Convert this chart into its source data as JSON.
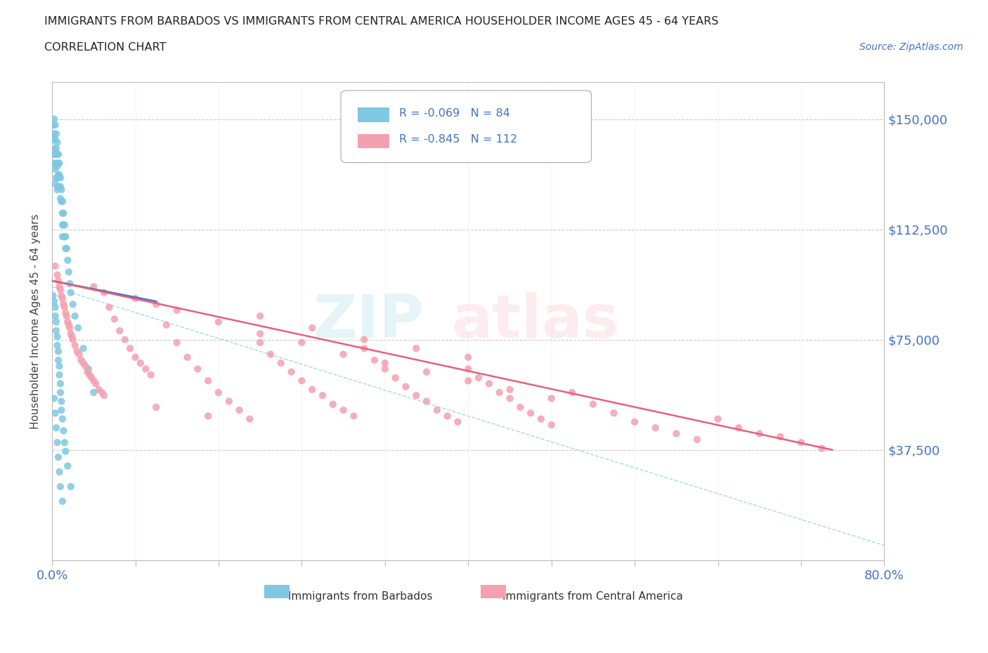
{
  "title_line1": "IMMIGRANTS FROM BARBADOS VS IMMIGRANTS FROM CENTRAL AMERICA HOUSEHOLDER INCOME AGES 45 - 64 YEARS",
  "title_line2": "CORRELATION CHART",
  "source_text": "Source: ZipAtlas.com",
  "ylabel": "Householder Income Ages 45 - 64 years",
  "xlim": [
    0.0,
    0.8
  ],
  "ylim": [
    0,
    162500
  ],
  "yticks": [
    0,
    37500,
    75000,
    112500,
    150000
  ],
  "ytick_labels": [
    "",
    "$37,500",
    "$75,000",
    "$112,500",
    "$150,000"
  ],
  "legend_r1": "R = -0.069",
  "legend_n1": "N = 84",
  "legend_r2": "R = -0.845",
  "legend_n2": "N = 112",
  "color_barbados": "#7EC8E3",
  "color_central": "#F4A0B0",
  "color_blue": "#4472C4",
  "color_pink": "#E8607A",
  "color_text_blue": "#4472C4",
  "barbados_x": [
    0.001,
    0.001,
    0.001,
    0.002,
    0.002,
    0.002,
    0.002,
    0.003,
    0.003,
    0.003,
    0.003,
    0.003,
    0.004,
    0.004,
    0.004,
    0.004,
    0.005,
    0.005,
    0.005,
    0.005,
    0.005,
    0.006,
    0.006,
    0.006,
    0.006,
    0.007,
    0.007,
    0.007,
    0.008,
    0.008,
    0.008,
    0.009,
    0.009,
    0.01,
    0.01,
    0.01,
    0.01,
    0.011,
    0.011,
    0.012,
    0.012,
    0.013,
    0.013,
    0.014,
    0.015,
    0.016,
    0.017,
    0.018,
    0.02,
    0.022,
    0.025,
    0.03,
    0.035,
    0.04,
    0.001,
    0.002,
    0.003,
    0.003,
    0.004,
    0.004,
    0.005,
    0.005,
    0.006,
    0.006,
    0.007,
    0.007,
    0.008,
    0.008,
    0.009,
    0.009,
    0.01,
    0.011,
    0.012,
    0.013,
    0.015,
    0.018,
    0.002,
    0.003,
    0.004,
    0.005,
    0.006,
    0.007,
    0.008,
    0.01
  ],
  "barbados_y": [
    148000,
    143000,
    138000,
    150000,
    145000,
    140000,
    135000,
    148000,
    143000,
    138000,
    133000,
    128000,
    145000,
    140000,
    135000,
    130000,
    142000,
    138000,
    134000,
    130000,
    126000,
    138000,
    135000,
    131000,
    127000,
    135000,
    131000,
    127000,
    130000,
    127000,
    123000,
    126000,
    122000,
    122000,
    118000,
    114000,
    110000,
    118000,
    114000,
    114000,
    110000,
    110000,
    106000,
    106000,
    102000,
    98000,
    94000,
    91000,
    87000,
    83000,
    79000,
    72000,
    65000,
    57000,
    90000,
    88000,
    86000,
    83000,
    81000,
    78000,
    76000,
    73000,
    71000,
    68000,
    66000,
    63000,
    60000,
    57000,
    54000,
    51000,
    48000,
    44000,
    40000,
    37000,
    32000,
    25000,
    55000,
    50000,
    45000,
    40000,
    35000,
    30000,
    25000,
    20000
  ],
  "central_x": [
    0.003,
    0.005,
    0.006,
    0.007,
    0.008,
    0.009,
    0.01,
    0.011,
    0.012,
    0.013,
    0.014,
    0.015,
    0.016,
    0.017,
    0.018,
    0.019,
    0.02,
    0.022,
    0.024,
    0.026,
    0.028,
    0.03,
    0.032,
    0.034,
    0.036,
    0.038,
    0.04,
    0.042,
    0.045,
    0.048,
    0.05,
    0.055,
    0.06,
    0.065,
    0.07,
    0.075,
    0.08,
    0.085,
    0.09,
    0.095,
    0.1,
    0.11,
    0.12,
    0.13,
    0.14,
    0.15,
    0.16,
    0.17,
    0.18,
    0.19,
    0.2,
    0.21,
    0.22,
    0.23,
    0.24,
    0.25,
    0.26,
    0.27,
    0.28,
    0.29,
    0.3,
    0.31,
    0.32,
    0.33,
    0.34,
    0.35,
    0.36,
    0.37,
    0.38,
    0.39,
    0.4,
    0.41,
    0.42,
    0.43,
    0.44,
    0.45,
    0.46,
    0.47,
    0.48,
    0.5,
    0.52,
    0.54,
    0.56,
    0.58,
    0.6,
    0.62,
    0.64,
    0.66,
    0.68,
    0.7,
    0.72,
    0.74,
    0.05,
    0.1,
    0.15,
    0.2,
    0.25,
    0.3,
    0.35,
    0.4,
    0.04,
    0.08,
    0.12,
    0.16,
    0.2,
    0.24,
    0.28,
    0.32,
    0.36,
    0.4,
    0.44,
    0.48
  ],
  "central_y": [
    100000,
    97000,
    95000,
    93000,
    92000,
    90000,
    89000,
    87000,
    86000,
    84000,
    83000,
    81000,
    80000,
    79000,
    77000,
    76000,
    75000,
    73000,
    71000,
    70000,
    68000,
    67000,
    66000,
    64000,
    63000,
    62000,
    61000,
    60000,
    58000,
    57000,
    91000,
    86000,
    82000,
    78000,
    75000,
    72000,
    69000,
    67000,
    65000,
    63000,
    87000,
    80000,
    74000,
    69000,
    65000,
    61000,
    57000,
    54000,
    51000,
    48000,
    74000,
    70000,
    67000,
    64000,
    61000,
    58000,
    56000,
    53000,
    51000,
    49000,
    72000,
    68000,
    65000,
    62000,
    59000,
    56000,
    54000,
    51000,
    49000,
    47000,
    65000,
    62000,
    60000,
    57000,
    55000,
    52000,
    50000,
    48000,
    46000,
    57000,
    53000,
    50000,
    47000,
    45000,
    43000,
    41000,
    48000,
    45000,
    43000,
    42000,
    40000,
    38000,
    56000,
    52000,
    49000,
    83000,
    79000,
    75000,
    72000,
    69000,
    93000,
    89000,
    85000,
    81000,
    77000,
    74000,
    70000,
    67000,
    64000,
    61000,
    58000,
    55000
  ],
  "blue_line_x0": 0.0,
  "blue_line_y0": 95000,
  "blue_line_x1": 0.1,
  "blue_line_y1": 88000,
  "pink_line_x0": 0.0,
  "pink_line_y0": 95000,
  "pink_line_x1": 0.75,
  "pink_line_y1": 37500,
  "dash_line_x0": 0.0,
  "dash_line_y0": 93000,
  "dash_line_x1": 0.8,
  "dash_line_y1": 5000
}
